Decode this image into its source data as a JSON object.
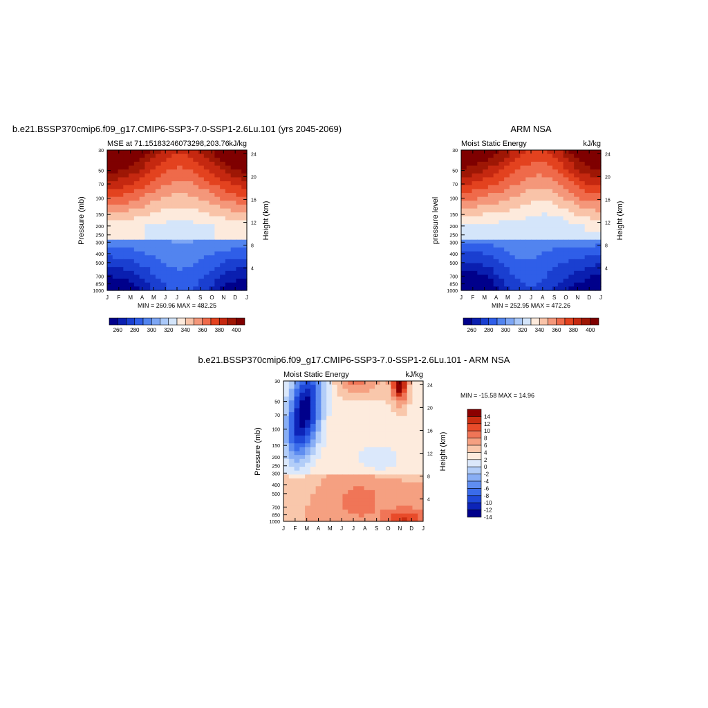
{
  "months": [
    "J",
    "F",
    "M",
    "A",
    "M",
    "J",
    "J",
    "A",
    "S",
    "O",
    "N",
    "D",
    "J"
  ],
  "pressure_ticks": [
    "30",
    "50",
    "70",
    "100",
    "150",
    "200",
    "250",
    "300",
    "400",
    "500",
    "700",
    "850",
    "1000"
  ],
  "height_ticks": [
    "24",
    "20",
    "16",
    "12",
    "8",
    "4"
  ],
  "colors": {
    "mse": [
      "#00008b",
      "#0a1fb0",
      "#1a3fd0",
      "#2f5ee8",
      "#5284ef",
      "#7da6f4",
      "#aac8f8",
      "#d4e5fa",
      "#fdeadc",
      "#f9c3a8",
      "#f4977a",
      "#ef6a4a",
      "#e3421f",
      "#c52810",
      "#9e1705",
      "#7f0000"
    ],
    "diff": [
      "#00008b",
      "#0d24b8",
      "#1f48d8",
      "#3a6bea",
      "#5f8df0",
      "#88aef5",
      "#b2cdf8",
      "#dbe8fb",
      "#fdebdd",
      "#f9c7ab",
      "#f5a081",
      "#f07557",
      "#e84b2a",
      "#cb2e12",
      "#8b0000"
    ]
  },
  "charts": {
    "model": {
      "header": "b.e21.BSSP370cmip6.f09_g17.CMIP6-SSP3-7.0-SSP1-2.6Lu.101 (yrs 2045-2069)",
      "left_label": "MSE at 71.15183246073298,203.76",
      "right_label": "kJ/kg",
      "ylabel": "Pressure (mb)",
      "ylabel_right": "Height (km)",
      "stats": "MIN = 260.96 MAX = 482.25",
      "colorbar_labels": [
        "260",
        "280",
        "300",
        "320",
        "340",
        "360",
        "380",
        "400"
      ]
    },
    "obs": {
      "header": "ARM NSA",
      "left_label": "Moist Static Energy",
      "right_label": "kJ/kg",
      "ylabel": "pressure level",
      "ylabel_right": "Height (km)",
      "stats": "MIN = 252.95 MAX = 472.26",
      "colorbar_labels": [
        "260",
        "280",
        "300",
        "320",
        "340",
        "360",
        "380",
        "400"
      ]
    },
    "diff": {
      "header": "b.e21.BSSP370cmip6.f09_g17.CMIP6-SSP3-7.0-SSP1-2.6Lu.101 - ARM NSA",
      "left_label": "Moist Static Energy",
      "right_label": "kJ/kg",
      "ylabel": "Pressure (mb)",
      "ylabel_right": "Height (km)",
      "stats": "MIN = -15.58 MAX =  14.96",
      "colorbar_labels": [
        "14",
        "12",
        "10",
        "8",
        "6",
        "4",
        "2",
        "0",
        "-2",
        "-4",
        "-6",
        "-8",
        "-10",
        "-12",
        "-14"
      ]
    }
  },
  "chart_data": [
    {
      "type": "heatmap",
      "title": "b.e21.BSSP370cmip6.f09_g17.CMIP6-SSP3-7.0-SSP1-2.6Lu.101 (yrs 2045-2069)",
      "subtitle": "MSE at 71.15183246073298,203.76",
      "units": "kJ/kg",
      "x": [
        "J",
        "F",
        "M",
        "A",
        "M",
        "J",
        "J",
        "A",
        "S",
        "O",
        "N",
        "D",
        "J"
      ],
      "y_pressure_mb": [
        30,
        50,
        70,
        100,
        150,
        200,
        250,
        300,
        400,
        500,
        700,
        850,
        1000
      ],
      "ylabel": "Pressure (mb)",
      "ylabel_right": "Height (km)",
      "min": 260.96,
      "max": 482.25,
      "levels": [
        260,
        270,
        280,
        290,
        300,
        310,
        320,
        330,
        340,
        350,
        360,
        370,
        380,
        390,
        400
      ]
    },
    {
      "type": "heatmap",
      "title": "ARM NSA",
      "subtitle": "Moist Static Energy",
      "units": "kJ/kg",
      "x": [
        "J",
        "F",
        "M",
        "A",
        "M",
        "J",
        "J",
        "A",
        "S",
        "O",
        "N",
        "D",
        "J"
      ],
      "y_pressure_mb": [
        30,
        50,
        70,
        100,
        150,
        200,
        250,
        300,
        400,
        500,
        700,
        850,
        1000
      ],
      "ylabel": "pressure level",
      "ylabel_right": "Height (km)",
      "min": 252.95,
      "max": 472.26,
      "levels": [
        260,
        270,
        280,
        290,
        300,
        310,
        320,
        330,
        340,
        350,
        360,
        370,
        380,
        390,
        400
      ]
    },
    {
      "type": "heatmap",
      "title": "b.e21.BSSP370cmip6.f09_g17.CMIP6-SSP3-7.0-SSP1-2.6Lu.101 - ARM NSA",
      "subtitle": "Moist Static Energy",
      "units": "kJ/kg",
      "x": [
        "J",
        "F",
        "M",
        "A",
        "M",
        "J",
        "J",
        "A",
        "S",
        "O",
        "N",
        "D",
        "J"
      ],
      "y_pressure_mb": [
        30,
        50,
        70,
        100,
        150,
        200,
        250,
        300,
        400,
        500,
        700,
        850,
        1000
      ],
      "ylabel": "Pressure (mb)",
      "ylabel_right": "Height (km)",
      "min": -15.58,
      "max": 14.96,
      "levels": [
        -14,
        -12,
        -10,
        -8,
        -6,
        -4,
        -2,
        0,
        2,
        4,
        6,
        8,
        10,
        12,
        14
      ]
    }
  ]
}
